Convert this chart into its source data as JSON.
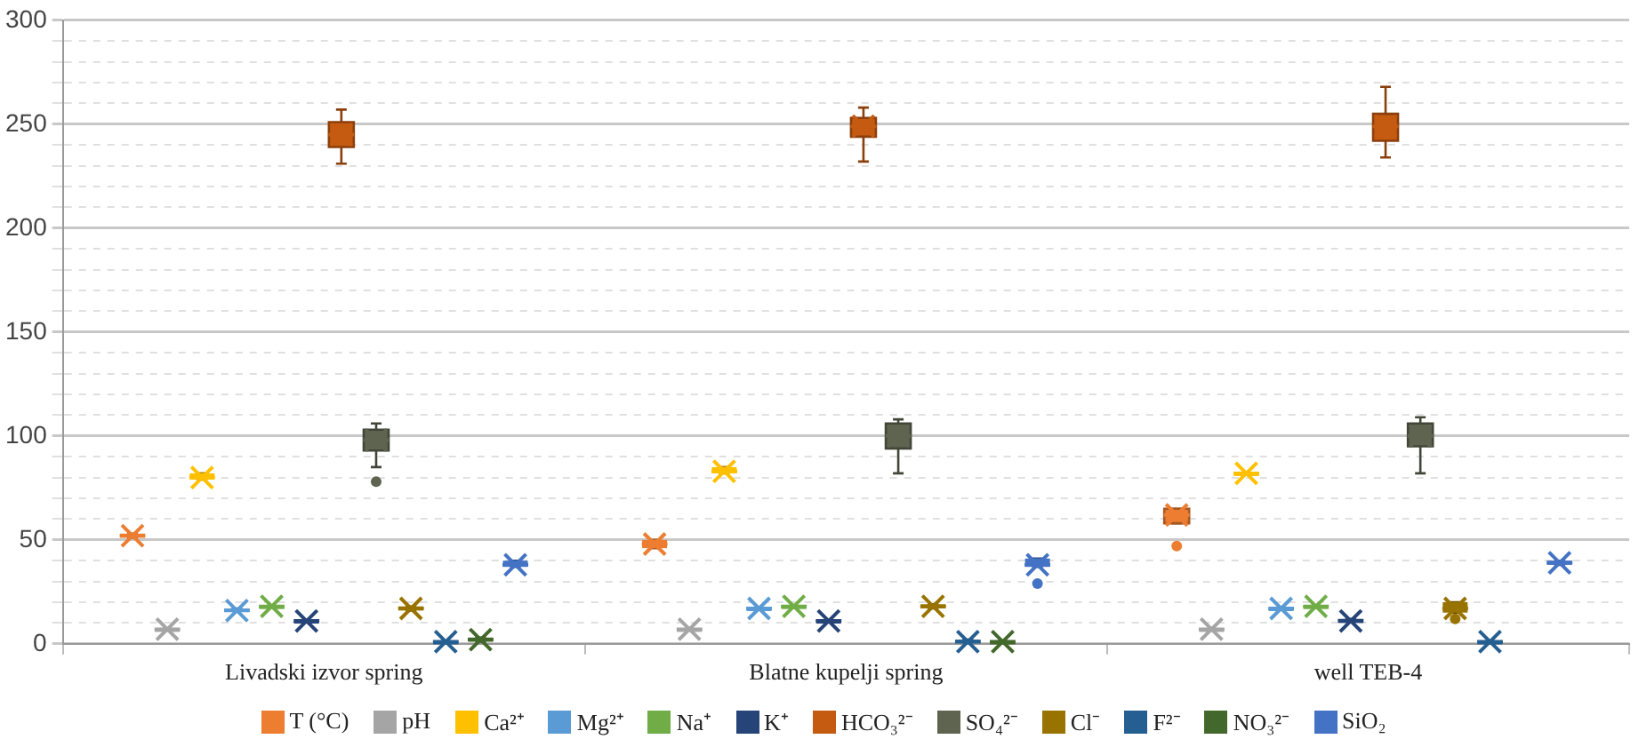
{
  "chart_data": {
    "type": "box",
    "categories": [
      "Livadski izvor spring",
      "Blatne kupelji spring",
      "well TEB-4"
    ],
    "ylim": [
      0,
      300
    ],
    "yticks": [
      0,
      {
        "value": 10,
        "label": null
      },
      {
        "value": 20,
        "label": null
      },
      {
        "value": 30,
        "label": null
      },
      {
        "value": 40,
        "label": null
      },
      50,
      {
        "value": 60,
        "label": null
      },
      {
        "value": 70,
        "label": null
      },
      {
        "value": 80,
        "label": null
      },
      {
        "value": 90,
        "label": null
      },
      100,
      {
        "value": 110,
        "label": null
      },
      {
        "value": 120,
        "label": null
      },
      {
        "value": 130,
        "label": null
      },
      {
        "value": 140,
        "label": null
      },
      150,
      {
        "value": 160,
        "label": null
      },
      {
        "value": 170,
        "label": null
      },
      {
        "value": 180,
        "label": null
      },
      {
        "value": 190,
        "label": null
      },
      200,
      {
        "value": 210,
        "label": null
      },
      {
        "value": 220,
        "label": null
      },
      {
        "value": 230,
        "label": null
      },
      {
        "value": 240,
        "label": null
      },
      250,
      {
        "value": 260,
        "label": null
      },
      {
        "value": 270,
        "label": null
      },
      {
        "value": 280,
        "label": null
      },
      {
        "value": 290,
        "label": null
      },
      300
    ],
    "grid": "y",
    "legend": "bottom",
    "marker": "cross",
    "series": [
      {
        "name": "T (°C)",
        "color": "#ed7d31",
        "boxes": [
          {
            "low": 51,
            "q1": 51,
            "median": 52,
            "q3": 53,
            "high": 53,
            "mean": 52
          },
          {
            "low": 46,
            "q1": 46,
            "median": 48,
            "q3": 50,
            "high": 50,
            "mean": 48
          },
          {
            "low": 58,
            "q1": 58,
            "median": 62,
            "q3": 65,
            "high": 65,
            "mean": 62,
            "outliers": [
              47
            ]
          }
        ]
      },
      {
        "name": "pH",
        "color": "#a5a5a5",
        "boxes": [
          {
            "low": 7,
            "q1": 7,
            "median": 7,
            "q3": 7,
            "high": 7,
            "mean": 7
          },
          {
            "low": 7,
            "q1": 7,
            "median": 7,
            "q3": 7,
            "high": 7,
            "mean": 7
          },
          {
            "low": 7,
            "q1": 7,
            "median": 7,
            "q3": 7,
            "high": 7,
            "mean": 7
          }
        ]
      },
      {
        "name": "Ca²⁺",
        "color": "#ffc000",
        "boxes": [
          {
            "low": 79,
            "q1": 79,
            "median": 80,
            "q3": 82,
            "high": 82,
            "mean": 80
          },
          {
            "low": 82,
            "q1": 82,
            "median": 83,
            "q3": 85,
            "high": 85,
            "mean": 83
          },
          {
            "low": 82,
            "q1": 82,
            "median": 82,
            "q3": 82,
            "high": 82,
            "mean": 82
          }
        ]
      },
      {
        "name": "Mg²⁺",
        "color": "#5b9bd5",
        "boxes": [
          {
            "low": 16,
            "q1": 16,
            "median": 16,
            "q3": 17,
            "high": 17,
            "mean": 16
          },
          {
            "low": 17,
            "q1": 17,
            "median": 17,
            "q3": 17,
            "high": 17,
            "mean": 17
          },
          {
            "low": 17,
            "q1": 17,
            "median": 17,
            "q3": 17,
            "high": 17,
            "mean": 17
          }
        ]
      },
      {
        "name": "Na⁺",
        "color": "#70ad47",
        "boxes": [
          {
            "low": 18,
            "q1": 18,
            "median": 18,
            "q3": 18,
            "high": 18,
            "mean": 18
          },
          {
            "low": 18,
            "q1": 18,
            "median": 18,
            "q3": 18,
            "high": 18,
            "mean": 18
          },
          {
            "low": 18,
            "q1": 18,
            "median": 18,
            "q3": 18,
            "high": 18,
            "mean": 18
          }
        ]
      },
      {
        "name": "K⁺",
        "color": "#264478",
        "boxes": [
          {
            "low": 11,
            "q1": 11,
            "median": 11,
            "q3": 11,
            "high": 11,
            "mean": 11
          },
          {
            "low": 11,
            "q1": 11,
            "median": 11,
            "q3": 11,
            "high": 11,
            "mean": 11
          },
          {
            "low": 11,
            "q1": 10,
            "median": 11,
            "q3": 12,
            "high": 12,
            "mean": 11
          }
        ]
      },
      {
        "name": "HCO₃²⁻",
        "color": "#c55a11",
        "boxes": [
          {
            "low": 231,
            "q1": 239,
            "median": 245,
            "q3": 251,
            "high": 257,
            "mean": 245
          },
          {
            "low": 232,
            "q1": 244,
            "median": 249,
            "q3": 253,
            "high": 258,
            "mean": 249
          },
          {
            "low": 234,
            "q1": 242,
            "median": 249,
            "q3": 255,
            "high": 268,
            "mean": 249
          }
        ]
      },
      {
        "name": "SO₄²⁻",
        "color": "#5e6450",
        "boxes": [
          {
            "low": 85,
            "q1": 93,
            "median": 98,
            "q3": 103,
            "high": 106,
            "mean": 98,
            "outliers": [
              78
            ]
          },
          {
            "low": 82,
            "q1": 94,
            "median": 100,
            "q3": 106,
            "high": 108,
            "mean": 100
          },
          {
            "low": 82,
            "q1": 95,
            "median": 100,
            "q3": 106,
            "high": 109,
            "mean": 100
          }
        ]
      },
      {
        "name": "Cl⁻",
        "color": "#997300",
        "boxes": [
          {
            "low": 16,
            "q1": 16,
            "median": 17,
            "q3": 18,
            "high": 18,
            "mean": 17
          },
          {
            "low": 17,
            "q1": 17,
            "median": 18,
            "q3": 19,
            "high": 19,
            "mean": 18
          },
          {
            "low": 15,
            "q1": 15,
            "median": 17,
            "q3": 20,
            "high": 20,
            "mean": 17,
            "outliers": [
              12
            ]
          }
        ]
      },
      {
        "name": "F²⁻",
        "color": "#255e91",
        "boxes": [
          {
            "low": 1,
            "q1": 1,
            "median": 1,
            "q3": 1,
            "high": 1,
            "mean": 1
          },
          {
            "low": 1,
            "q1": 1,
            "median": 1,
            "q3": 2,
            "high": 2,
            "mean": 1
          },
          {
            "low": 1,
            "q1": 1,
            "median": 1,
            "q3": 1,
            "high": 1,
            "mean": 1
          }
        ]
      },
      {
        "name": "NO₃²⁻",
        "color": "#43682b",
        "boxes": [
          {
            "low": 1,
            "q1": 1,
            "median": 2,
            "q3": 3,
            "high": 3,
            "mean": 2
          },
          {
            "low": 1,
            "q1": 1,
            "median": 1,
            "q3": 1,
            "high": 1,
            "mean": 1
          },
          null
        ]
      },
      {
        "name": "SiO₂",
        "color": "#4472c4",
        "boxes": [
          {
            "low": 37,
            "q1": 37,
            "median": 38,
            "q3": 40,
            "high": 40,
            "mean": 38
          },
          {
            "low": 37,
            "q1": 37,
            "median": 38,
            "q3": 41,
            "high": 41,
            "mean": 38,
            "outliers": [
              29
            ]
          },
          {
            "low": 38,
            "q1": 38,
            "median": 39,
            "q3": 40,
            "high": 40,
            "mean": 39
          }
        ]
      }
    ]
  }
}
